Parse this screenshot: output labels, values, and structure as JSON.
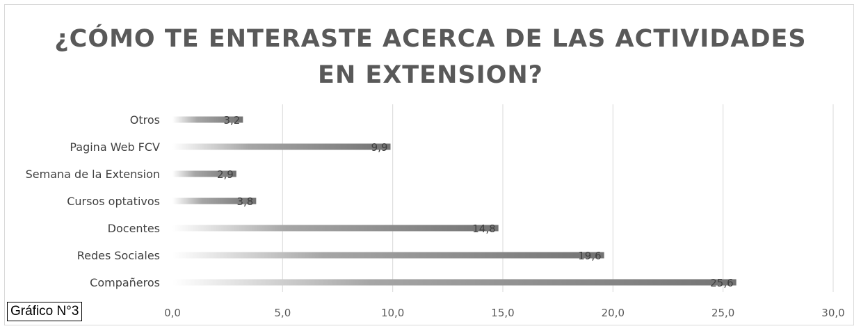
{
  "figure_label": "Gráfico N°3",
  "chart_data": {
    "type": "bar",
    "orientation": "horizontal",
    "title": "¿CÓMO TE ENTERASTE ACERCA DE LAS ACTIVIDADES EN EXTENSION?",
    "title_lines": [
      "¿CÓMO TE ENTERASTE ACERCA DE LAS ACTIVIDADES",
      "EN EXTENSION?"
    ],
    "categories": [
      "Otros",
      "Pagina Web FCV",
      "Semana de la Extension",
      "Cursos optativos",
      "Docentes",
      "Redes Sociales",
      "Compañeros"
    ],
    "values": [
      3.2,
      9.9,
      2.9,
      3.8,
      14.8,
      19.6,
      25.6
    ],
    "data_labels": [
      "3,2",
      "9,9",
      "2,9",
      "3,8",
      "14,8",
      "19,6",
      "25,6"
    ],
    "xlim": [
      0,
      30
    ],
    "x_ticks": [
      0,
      5,
      10,
      15,
      20,
      25,
      30
    ],
    "x_tick_labels": [
      "0,0",
      "5,0",
      "10,0",
      "15,0",
      "20,0",
      "25,0",
      "30,0"
    ],
    "grid": "vertical",
    "legend": "none",
    "bar_color": "#7f7f7f",
    "grid_color": "#d9d9d9"
  }
}
